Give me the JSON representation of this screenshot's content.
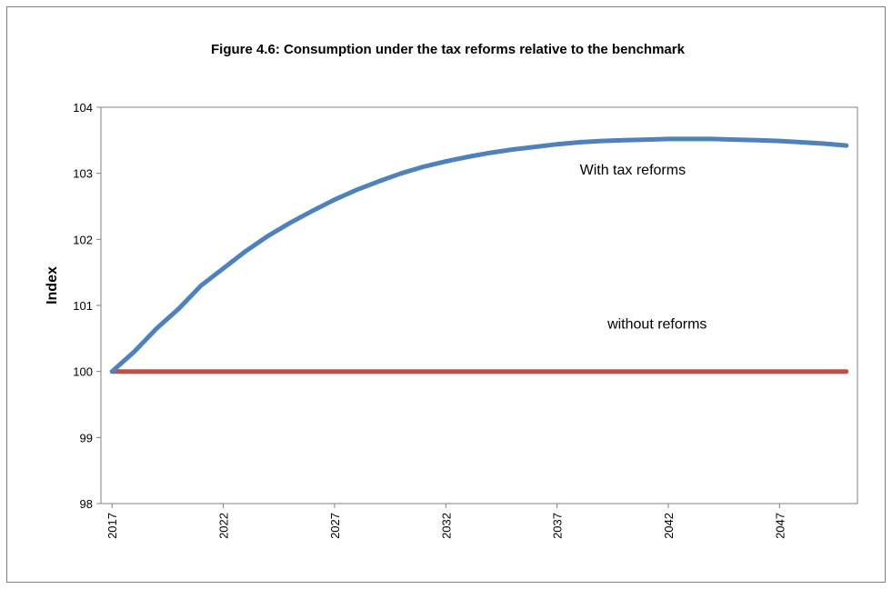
{
  "chart_data": {
    "type": "line",
    "title": "Figure 4.6: Consumption under the tax reforms relative to the benchmark",
    "xlabel": "",
    "ylabel": "Index",
    "ylim": [
      98,
      104
    ],
    "yticks": [
      98,
      99,
      100,
      101,
      102,
      103,
      104
    ],
    "xlim": [
      2016.5,
      2050.5
    ],
    "xticks": [
      2017,
      2022,
      2027,
      2032,
      2037,
      2042,
      2047
    ],
    "grid": false,
    "legend": "none",
    "series": [
      {
        "name": "With tax reforms",
        "color": "#4f81bd",
        "x": [
          2017,
          2018,
          2019,
          2020,
          2021,
          2022,
          2023,
          2024,
          2025,
          2026,
          2027,
          2028,
          2029,
          2030,
          2031,
          2032,
          2033,
          2034,
          2035,
          2036,
          2037,
          2038,
          2039,
          2040,
          2041,
          2042,
          2043,
          2044,
          2045,
          2046,
          2047,
          2048,
          2049,
          2050
        ],
        "values": [
          100.0,
          100.3,
          100.65,
          100.95,
          101.3,
          101.56,
          101.82,
          102.05,
          102.25,
          102.43,
          102.6,
          102.75,
          102.88,
          103.0,
          103.1,
          103.18,
          103.25,
          103.31,
          103.36,
          103.4,
          103.44,
          103.47,
          103.49,
          103.5,
          103.51,
          103.52,
          103.52,
          103.52,
          103.51,
          103.5,
          103.49,
          103.47,
          103.45,
          103.42
        ]
      },
      {
        "name": "without reforms",
        "color": "#c0504d",
        "x": [
          2017,
          2050
        ],
        "values": [
          100,
          100
        ]
      }
    ],
    "annotations": [
      {
        "text": "With tax reforms",
        "x": 2040.4,
        "y": 102.98
      },
      {
        "text": "without reforms",
        "x": 2041.5,
        "y": 100.65
      }
    ]
  }
}
